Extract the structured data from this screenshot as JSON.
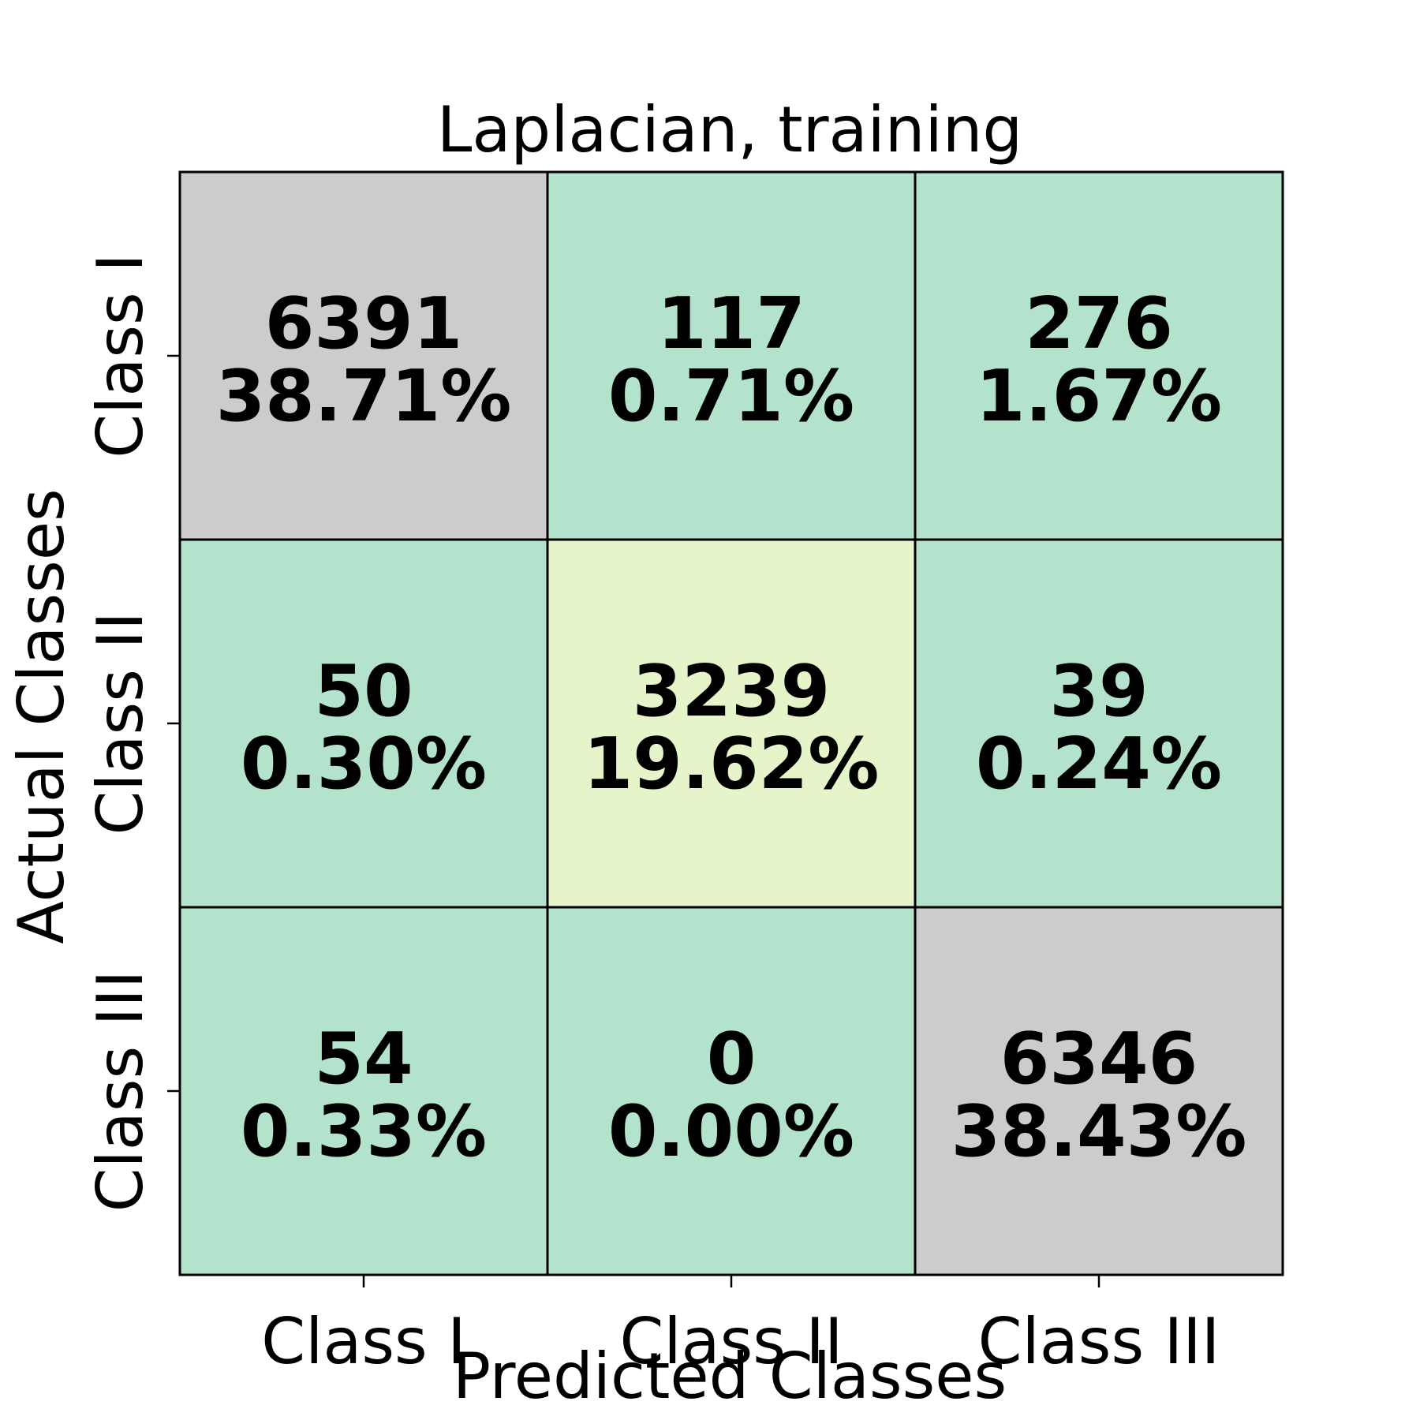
{
  "chart_data": {
    "type": "heatmap",
    "title": "Laplacian, training",
    "xlabel": "Predicted Classes",
    "ylabel": "Actual Classes",
    "x_categories": [
      "Class I",
      "Class II",
      "Class III"
    ],
    "y_categories": [
      "Class I",
      "Class II",
      "Class III"
    ],
    "values": [
      [
        6391,
        117,
        276
      ],
      [
        50,
        3239,
        39
      ],
      [
        54,
        0,
        6346
      ]
    ],
    "percentages": [
      [
        "38.71%",
        "0.71%",
        "1.67%"
      ],
      [
        "0.30%",
        "19.62%",
        "0.24%"
      ],
      [
        "0.33%",
        "0.00%",
        "38.43%"
      ]
    ],
    "cell_colors": [
      [
        "#cccccc",
        "#b3e2cd",
        "#b3e2cd"
      ],
      [
        "#b3e2cd",
        "#e6f5c9",
        "#b3e2cd"
      ],
      [
        "#b3e2cd",
        "#b3e2cd",
        "#cccccc"
      ]
    ]
  }
}
